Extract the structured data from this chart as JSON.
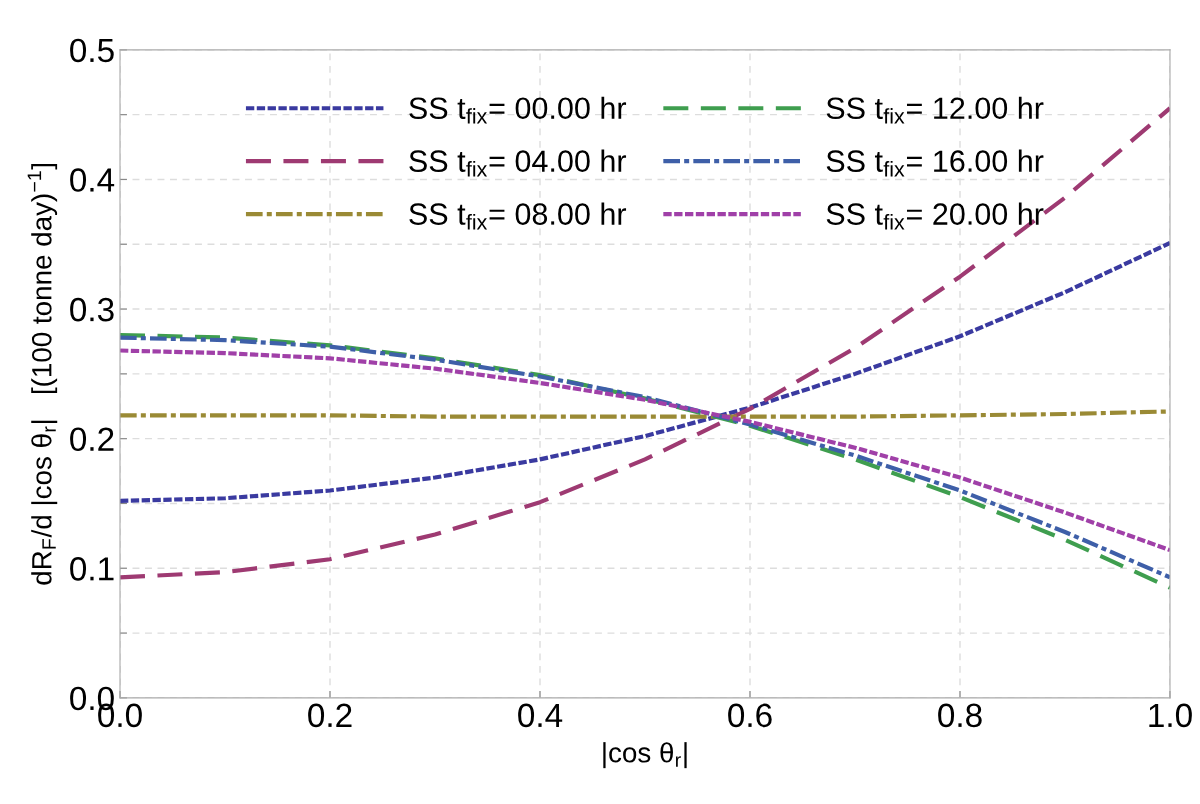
{
  "chart_data": {
    "type": "line",
    "xlabel": "|cos θ$_{r}$|",
    "ylabel": "dR$_{F}$/d |cos θ$_{r}$|   [(100 tonne day)$^{−1}$]",
    "x": [
      0,
      0.1,
      0.2,
      0.3,
      0.4,
      0.5,
      0.6,
      0.7,
      0.8,
      0.9,
      1.0
    ],
    "series": [
      {
        "name": "SS t$_{fix}$= 00.00 hr",
        "color": "#3a3aa0",
        "line_style": "dotted",
        "values": [
          0.152,
          0.154,
          0.16,
          0.17,
          0.184,
          0.202,
          0.224,
          0.25,
          0.279,
          0.313,
          0.351
        ]
      },
      {
        "name": "SS t$_{fix}$= 04.00 hr",
        "color": "#9e3a72",
        "line_style": "dashed",
        "values": [
          0.093,
          0.097,
          0.107,
          0.126,
          0.151,
          0.184,
          0.223,
          0.27,
          0.325,
          0.386,
          0.455
        ]
      },
      {
        "name": "SS t$_{fix}$= 08.00 hr",
        "color": "#9a8a35",
        "line_style": "dashdot",
        "values": [
          0.218,
          0.218,
          0.218,
          0.217,
          0.217,
          0.217,
          0.217,
          0.217,
          0.218,
          0.219,
          0.221
        ]
      },
      {
        "name": "SS t$_{fix}$= 12.00 hr",
        "color": "#3f9e4f",
        "line_style": "dashed",
        "values": [
          0.28,
          0.278,
          0.272,
          0.262,
          0.249,
          0.231,
          0.21,
          0.184,
          0.155,
          0.122,
          0.085
        ]
      },
      {
        "name": "SS t$_{fix}$= 16.00 hr",
        "color": "#3e5fa8",
        "line_style": "dashdot",
        "values": [
          0.278,
          0.276,
          0.271,
          0.261,
          0.248,
          0.232,
          0.211,
          0.187,
          0.16,
          0.128,
          0.093
        ]
      },
      {
        "name": "SS t$_{fix}$= 20.00 hr",
        "color": "#a040a8",
        "line_style": "dotted",
        "values": [
          0.268,
          0.266,
          0.262,
          0.254,
          0.243,
          0.23,
          0.213,
          0.193,
          0.17,
          0.143,
          0.114
        ]
      }
    ],
    "xlim": [
      0,
      1.0
    ],
    "xticks": [
      {
        "value": 0,
        "label": "0.0"
      },
      0.2,
      0.4,
      0.6,
      0.8,
      {
        "value": 1,
        "label": "1.0"
      }
    ],
    "ylim": [
      0,
      0.5
    ],
    "yticks": [
      {
        "value": 0,
        "label": "0.0"
      },
      {
        "value": 0.05,
        "label": null
      },
      0.1,
      {
        "value": 0.15,
        "label": null
      },
      0.2,
      {
        "value": 0.25,
        "label": null
      },
      0.3,
      {
        "value": 0.35,
        "label": null
      },
      0.4,
      {
        "value": 0.45,
        "label": null
      },
      0.5
    ],
    "grid": true,
    "legend": "top"
  }
}
